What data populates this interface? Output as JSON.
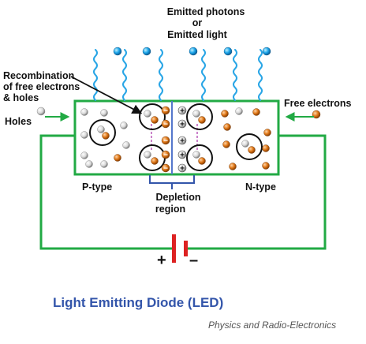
{
  "labels": {
    "emitted_line1": "Emitted photons",
    "emitted_line2": "or",
    "emitted_line3": "Emitted light",
    "recomb_line1": "Recombination",
    "recomb_line2": "of free electrons",
    "recomb_line3": "& holes",
    "holes": "Holes",
    "free_electrons": "Free electrons",
    "p_type": "P-type",
    "n_type": "N-type",
    "depletion_line1": "Depletion",
    "depletion_line2": "region",
    "plus": "+",
    "minus": "–",
    "ion_plus": "+",
    "ion_minus": "−"
  },
  "title": "Light Emitting Diode (LED)",
  "credit": "Physics and Radio-Electronics",
  "colors": {
    "circuit": "#22aa44",
    "photon": "#1aa3e8",
    "photon_wave": "#2aa6e6",
    "electron": "#e07818",
    "hole": "#d8d8d8",
    "battery_long": "#dd2222",
    "battery_short": "#dd2222",
    "title": "#3355aa",
    "divider": "#5577cc",
    "brace": "#3355aa",
    "recomb_link": "#aa33aa"
  },
  "icons": {
    "photon": "blue-sphere",
    "electron": "orange-sphere",
    "hole": "white-sphere",
    "battery": "battery-symbol"
  }
}
